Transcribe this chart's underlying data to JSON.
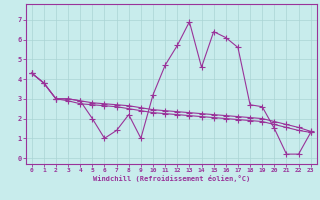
{
  "background_color": "#c8ecec",
  "grid_color": "#aad4d4",
  "line_color": "#993399",
  "marker_color": "#993399",
  "xlabel": "Windchill (Refroidissement éolien,°C)",
  "xlim": [
    -0.5,
    23.5
  ],
  "ylim": [
    -0.3,
    7.8
  ],
  "xticks": [
    0,
    1,
    2,
    3,
    4,
    5,
    6,
    7,
    8,
    9,
    10,
    11,
    12,
    13,
    14,
    15,
    16,
    17,
    18,
    19,
    20,
    21,
    22,
    23
  ],
  "yticks": [
    0,
    1,
    2,
    3,
    4,
    5,
    6,
    7
  ],
  "series1_x": [
    0,
    1,
    2,
    3,
    4,
    5,
    6,
    7,
    8,
    9,
    10,
    11,
    12,
    13,
    14,
    15,
    16,
    17,
    18,
    19,
    20,
    21,
    22,
    23
  ],
  "series1_y": [
    4.3,
    3.8,
    3.0,
    3.0,
    2.9,
    2.0,
    1.0,
    1.4,
    2.2,
    1.0,
    3.2,
    4.7,
    5.7,
    6.9,
    4.6,
    6.4,
    6.1,
    5.6,
    2.7,
    2.6,
    1.5,
    0.2,
    0.2,
    1.3
  ],
  "series2_x": [
    0,
    1,
    2,
    3,
    4,
    5,
    6,
    7,
    8,
    9,
    10,
    11,
    12,
    13,
    14,
    15,
    16,
    17,
    18,
    19,
    20,
    21,
    22,
    23
  ],
  "series2_y": [
    4.3,
    3.8,
    3.0,
    3.0,
    2.9,
    2.8,
    2.75,
    2.7,
    2.65,
    2.55,
    2.45,
    2.4,
    2.35,
    2.3,
    2.25,
    2.2,
    2.15,
    2.1,
    2.05,
    2.0,
    1.85,
    1.7,
    1.55,
    1.35
  ],
  "series3_x": [
    0,
    1,
    2,
    3,
    4,
    5,
    6,
    7,
    8,
    9,
    10,
    11,
    12,
    13,
    14,
    15,
    16,
    17,
    18,
    19,
    20,
    21,
    22,
    23
  ],
  "series3_y": [
    4.3,
    3.8,
    3.0,
    2.9,
    2.75,
    2.7,
    2.65,
    2.6,
    2.5,
    2.4,
    2.3,
    2.25,
    2.2,
    2.15,
    2.1,
    2.05,
    2.0,
    1.95,
    1.9,
    1.85,
    1.7,
    1.55,
    1.4,
    1.3
  ]
}
